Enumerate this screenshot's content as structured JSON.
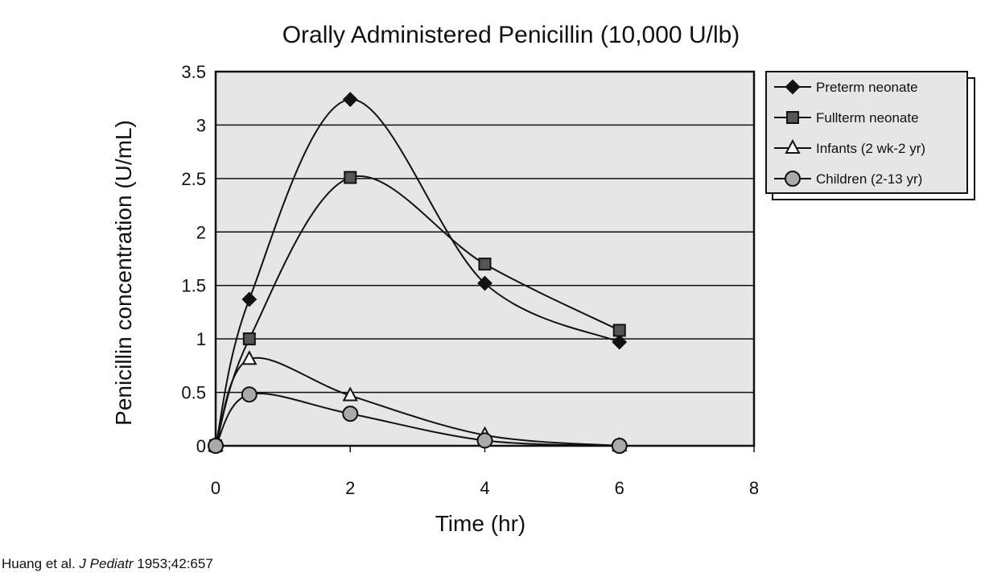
{
  "chart_data": {
    "type": "line",
    "title": "Orally Administered Penicillin (10,000 U/lb)",
    "xlabel": "Time (hr)",
    "ylabel": "Penicillin concentration (U/mL)",
    "xlim": [
      0,
      8
    ],
    "ylim": [
      0,
      3.5
    ],
    "x_ticks": [
      "0",
      "2",
      "4",
      "6",
      "8"
    ],
    "y_ticks": [
      "0",
      "0.5",
      "1",
      "1.5",
      "2",
      "2.5",
      "3",
      "3.5"
    ],
    "grid": "horizontal",
    "legend_position": "right",
    "plot_background": "#e6e6e6",
    "series": [
      {
        "name": "Preterm neonate",
        "marker": "diamond",
        "color": "#111111",
        "x": [
          0,
          0.5,
          2,
          4,
          6
        ],
        "y": [
          0,
          1.37,
          3.24,
          1.52,
          0.97
        ]
      },
      {
        "name": "Fullterm neonate",
        "marker": "square",
        "color": "#555555",
        "x": [
          0,
          0.5,
          2,
          4,
          6
        ],
        "y": [
          0,
          1.0,
          2.51,
          1.7,
          1.08
        ]
      },
      {
        "name": "Infants (2 wk-2 yr)",
        "marker": "triangle",
        "color": "#ffffff",
        "x": [
          0,
          0.5,
          2,
          4,
          6
        ],
        "y": [
          0,
          0.81,
          0.47,
          0.1,
          0.0
        ]
      },
      {
        "name": "Children (2-13 yr)",
        "marker": "circle",
        "color": "#aaaaaa",
        "x": [
          0,
          0.5,
          2,
          4,
          6
        ],
        "y": [
          0,
          0.48,
          0.3,
          0.05,
          0.0
        ]
      }
    ]
  },
  "citation": {
    "authors": "Huang et al.",
    "journal": "J Pediatr",
    "ref": "1953;42:657"
  }
}
